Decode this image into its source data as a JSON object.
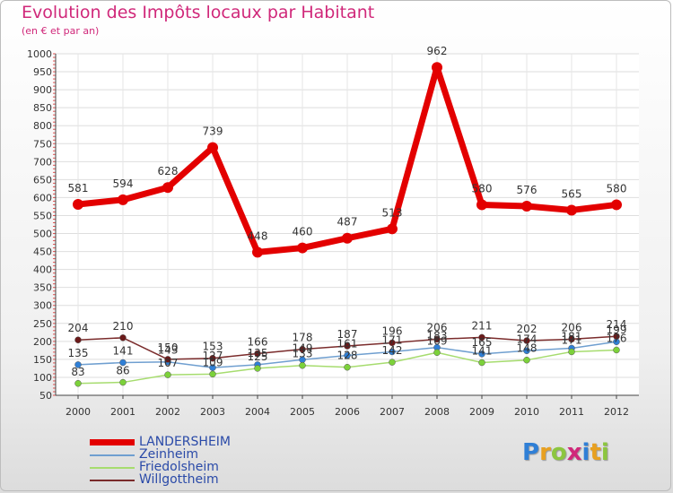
{
  "header": {
    "title": "Evolution des Impôts locaux par Habitant",
    "subtitle": "(en € et par an)"
  },
  "logo": {
    "letters": [
      "P",
      "r",
      "o",
      "x",
      "i",
      "t",
      "i"
    ],
    "colors": [
      "#2f7fd6",
      "#e8a020",
      "#8cc63f",
      "#d0287a",
      "#2f7fd6",
      "#e8a020",
      "#8cc63f"
    ]
  },
  "chart_data": {
    "type": "line",
    "title": "Evolution des Impôts locaux par Habitant",
    "subtitle": "(en € et par an)",
    "xlabel": "",
    "ylabel": "",
    "categories": [
      "2000",
      "2001",
      "2002",
      "2003",
      "2004",
      "2005",
      "2006",
      "2007",
      "2008",
      "2009",
      "2010",
      "2011",
      "2012"
    ],
    "ylim": [
      50,
      1000
    ],
    "yticks": [
      50,
      100,
      150,
      200,
      250,
      300,
      350,
      400,
      450,
      500,
      550,
      600,
      650,
      700,
      750,
      800,
      850,
      900,
      950,
      1000
    ],
    "grid": true,
    "legend_position": "bottom-left",
    "series": [
      {
        "name": "LANDERSHEIM",
        "color": "#e30000",
        "marker": "#e30000",
        "width": 7,
        "values": [
          581,
          594,
          628,
          739,
          448,
          460,
          487,
          513,
          962,
          580,
          576,
          565,
          580
        ],
        "labels": [
          "581",
          "594",
          "628",
          "739",
          "448",
          "460",
          "487",
          "513",
          "962",
          "580",
          "576",
          "565",
          "580"
        ]
      },
      {
        "name": "Zeinheim",
        "color": "#6f9fd0",
        "marker": "#2f7fd6",
        "width": 1.5,
        "values": [
          135,
          141,
          143,
          127,
          135,
          149,
          161,
          171,
          183,
          165,
          174,
          181,
          199
        ],
        "labels": [
          "135",
          "141",
          "143",
          "127",
          "135",
          "149",
          "161",
          "171",
          "183",
          "165",
          "174",
          "181",
          "199"
        ]
      },
      {
        "name": "Friedolsheim",
        "color": "#a6dc6e",
        "marker": "#7cd13a",
        "width": 1.5,
        "values": [
          83,
          86,
          107,
          109,
          125,
          133,
          128,
          142,
          169,
          141,
          148,
          171,
          176
        ],
        "labels": [
          "83",
          "86",
          "107",
          "109",
          "125",
          "133",
          "128",
          "142",
          "169",
          "141",
          "148",
          "171",
          "176"
        ]
      },
      {
        "name": "Willgottheim",
        "color": "#7a2b2b",
        "marker": "#6b1a1a",
        "width": 1.5,
        "values": [
          204,
          210,
          150,
          153,
          166,
          178,
          187,
          196,
          206,
          211,
          202,
          206,
          214
        ],
        "labels": [
          "204",
          "210",
          "150",
          "153",
          "166",
          "178",
          "187",
          "196",
          "206",
          "211",
          "202",
          "206",
          "214"
        ]
      }
    ]
  }
}
